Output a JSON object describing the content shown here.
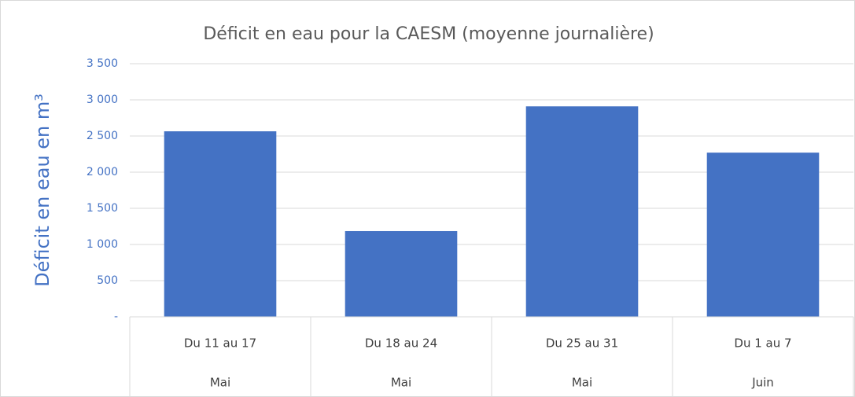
{
  "chart_data": {
    "type": "bar",
    "title": "Déficit en eau pour la CAESM (moyenne journalière)",
    "y_label": "Déficit en eau en m³",
    "categories": [
      "Du 11 au 17",
      "Du 18 au 24",
      "Du 25 au 31",
      "Du 1 au 7"
    ],
    "subcategories": [
      "Mai",
      "Mai",
      "Mai",
      "Juin"
    ],
    "values": [
      2565,
      1185,
      2910,
      2270
    ],
    "color": "#4472c4",
    "ylim": [
      0,
      3500
    ],
    "yticks": [
      {
        "value": 0,
        "label": "-"
      },
      500,
      {
        "value": 1000,
        "label": "1 000"
      },
      {
        "value": 1500,
        "label": "1 500"
      },
      {
        "value": 2000,
        "label": "2 000"
      },
      {
        "value": 2500,
        "label": "2 500"
      },
      {
        "value": 3000,
        "label": "3 000"
      },
      {
        "value": 3500,
        "label": "3 500"
      }
    ],
    "grid": true
  }
}
